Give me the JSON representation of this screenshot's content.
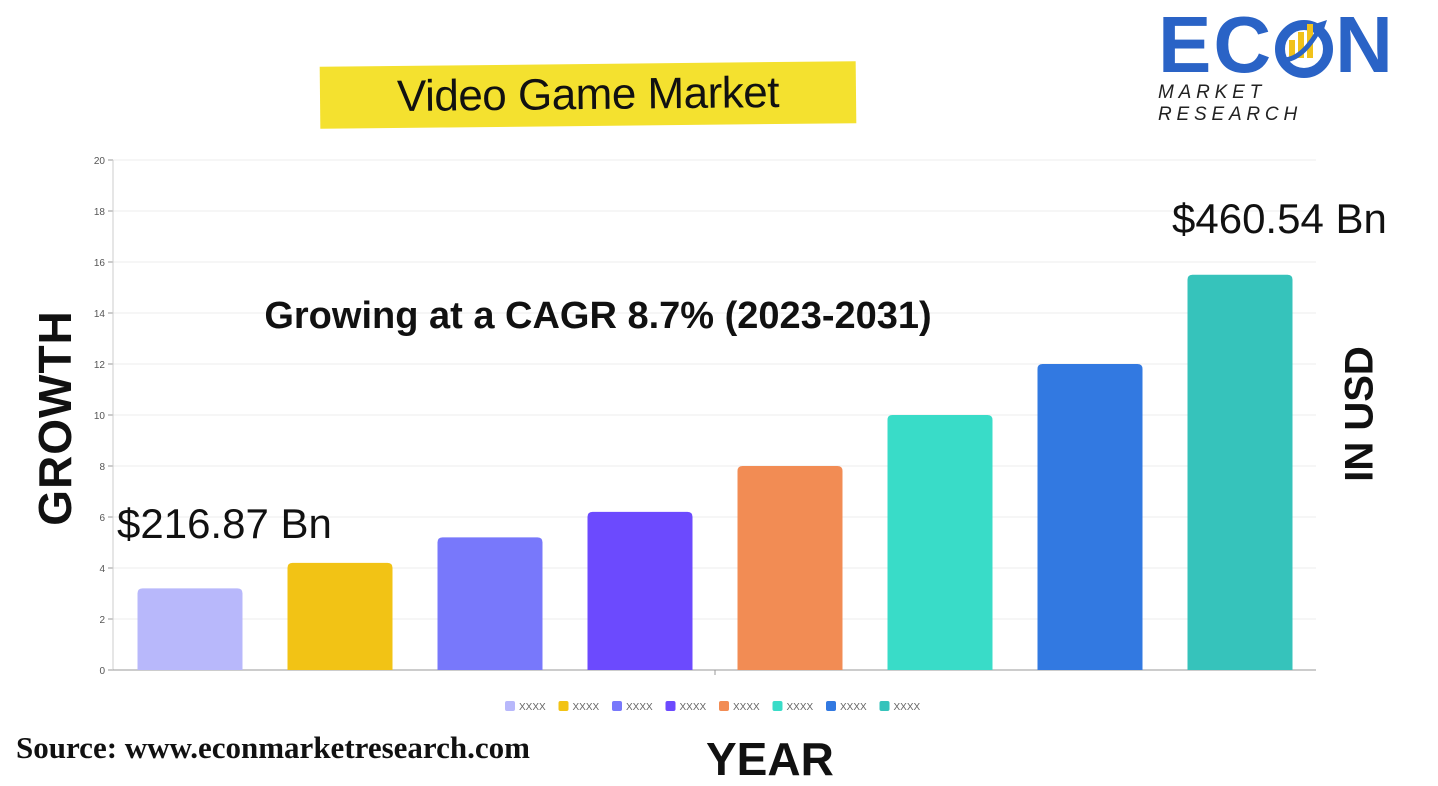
{
  "title": "Video Game Market",
  "logo": {
    "name": "ECON",
    "sub": "MARKET RESEARCH"
  },
  "source": "Source: www.econmarketresearch.com",
  "colors": {
    "title_highlight": "#f4e12f",
    "logo_blue": "#2a63c6",
    "logo_yellow": "#f1c21b"
  },
  "chart_data": {
    "type": "bar",
    "xlabel": "YEAR",
    "ylabel": "GROWTH",
    "y2label": "IN USD",
    "ylim": [
      0,
      20
    ],
    "yticks": [
      0,
      2,
      4,
      6,
      8,
      10,
      12,
      14,
      16,
      18,
      20
    ],
    "grid": true,
    "legend_position": "bottom-center",
    "categories": [
      "XXXX",
      "XXXX",
      "XXXX",
      "XXXX",
      "XXXX",
      "XXXX",
      "XXXX",
      "XXXX"
    ],
    "values": [
      3.2,
      4.2,
      5.2,
      6.2,
      8.0,
      10.0,
      12.0,
      15.5
    ],
    "bar_colors": [
      "#b8b8fb",
      "#f2c315",
      "#7878fb",
      "#6c4afe",
      "#f28c54",
      "#39dcc8",
      "#3279e1",
      "#36c3bb"
    ],
    "annotations": {
      "cagr": "Growing at a CAGR 8.7% (2023-2031)",
      "start_value": "$216.87 Bn",
      "end_value": "$460.54 Bn"
    }
  }
}
